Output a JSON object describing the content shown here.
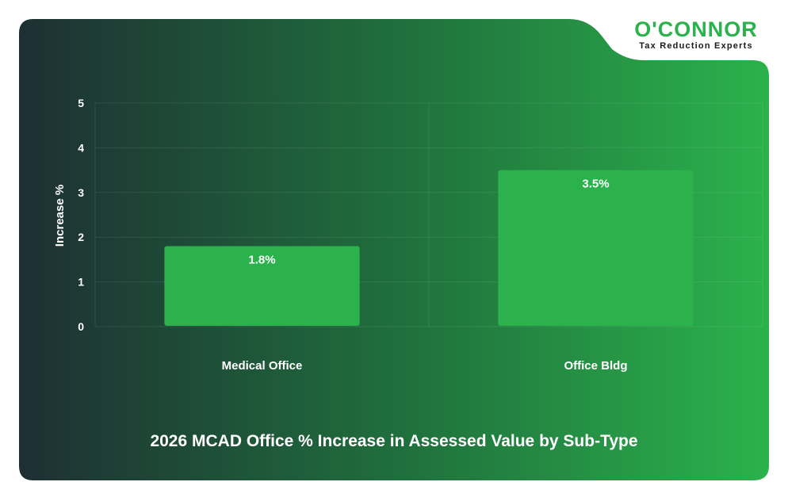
{
  "brand": {
    "name": "O'CONNOR",
    "tagline": "Tax Reduction Experts"
  },
  "colors": {
    "bar": "#2bb24c",
    "card_dark": "#1e2f33",
    "card_light": "#2bb24c"
  },
  "chart_data": {
    "type": "bar",
    "title": "2026 MCAD Office % Increase in Assessed Value by Sub-Type",
    "xlabel": "",
    "ylabel": "Increase %",
    "categories": [
      "Medical Office",
      "Office Bldg"
    ],
    "values": [
      1.8,
      3.5
    ],
    "data_labels": [
      "1.8%",
      "3.5%"
    ],
    "ylim": [
      0,
      5
    ],
    "yticks": [
      "0",
      "1",
      "2",
      "3",
      "4",
      "5"
    ],
    "grid": true
  }
}
